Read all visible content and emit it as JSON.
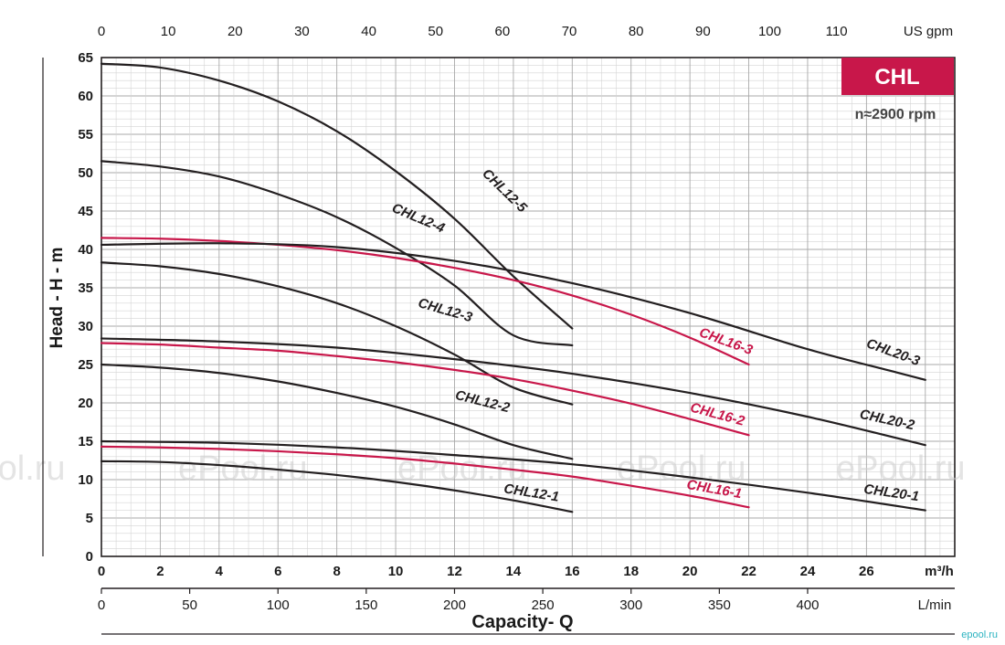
{
  "chart_data": {
    "type": "line",
    "title": "CHL",
    "subtitle": "n≈2900 rpm",
    "ylabel": "Head - H - m",
    "xlabel": "Capacity- Q",
    "ylim": [
      0,
      65
    ],
    "y_ticks": [
      0,
      5,
      10,
      15,
      20,
      25,
      30,
      35,
      40,
      45,
      50,
      55,
      60,
      65
    ],
    "xlim": [
      0,
      29
    ],
    "x_unit": "m³/h",
    "x_ticks": [
      0,
      2,
      4,
      6,
      8,
      10,
      12,
      14,
      16,
      18,
      20,
      22,
      24,
      26
    ],
    "top_axis": {
      "unit": "US gpm",
      "ticks": [
        0,
        10,
        20,
        30,
        40,
        50,
        60,
        70,
        80,
        90,
        100,
        110
      ]
    },
    "bottom_axis": {
      "unit": "L/min",
      "ticks": [
        0,
        50,
        100,
        150,
        200,
        250,
        300,
        350,
        400
      ]
    },
    "grid": true,
    "colors": {
      "black_series": "#231f20",
      "red_series": "#c8174a",
      "badge": "#c8174a"
    },
    "series": [
      {
        "name": "CHL12-5",
        "color": "#231f20",
        "x": [
          0,
          2,
          4,
          6,
          8,
          10,
          12,
          14,
          16
        ],
        "y": [
          64.2,
          63.7,
          62.0,
          59.3,
          55.4,
          50.2,
          44.0,
          36.5,
          29.7
        ]
      },
      {
        "name": "CHL12-4",
        "color": "#231f20",
        "x": [
          0,
          2,
          4,
          6,
          8,
          10,
          12,
          14,
          16
        ],
        "y": [
          51.5,
          50.8,
          49.5,
          47.2,
          44.2,
          40.2,
          35.3,
          28.8,
          27.5
        ]
      },
      {
        "name": "CHL12-3",
        "color": "#231f20",
        "x": [
          0,
          2,
          4,
          6,
          8,
          10,
          12,
          14,
          16
        ],
        "y": [
          38.3,
          37.8,
          36.8,
          35.2,
          33.0,
          30.0,
          26.3,
          22.0,
          19.8
        ]
      },
      {
        "name": "CHL12-2",
        "color": "#231f20",
        "x": [
          0,
          2,
          4,
          6,
          8,
          10,
          12,
          14,
          16
        ],
        "y": [
          25.0,
          24.6,
          23.9,
          22.8,
          21.3,
          19.5,
          17.2,
          14.5,
          12.7
        ]
      },
      {
        "name": "CHL12-1",
        "color": "#231f20",
        "x": [
          0,
          2,
          4,
          6,
          8,
          10,
          12,
          14,
          16
        ],
        "y": [
          12.4,
          12.3,
          11.9,
          11.3,
          10.6,
          9.7,
          8.6,
          7.3,
          5.8
        ]
      },
      {
        "name": "CHL16-3",
        "color": "#c8174a",
        "x": [
          0,
          2,
          4,
          6,
          8,
          10,
          12,
          14,
          16,
          18,
          20,
          22
        ],
        "y": [
          41.5,
          41.4,
          41.1,
          40.6,
          39.9,
          38.9,
          37.6,
          36.0,
          34.0,
          31.5,
          28.5,
          25.0
        ]
      },
      {
        "name": "CHL16-2",
        "color": "#c8174a",
        "x": [
          0,
          2,
          4,
          6,
          8,
          10,
          12,
          14,
          16,
          18,
          20,
          22
        ],
        "y": [
          27.8,
          27.6,
          27.2,
          26.8,
          26.1,
          25.3,
          24.3,
          23.1,
          21.6,
          19.9,
          17.9,
          15.8
        ]
      },
      {
        "name": "CHL16-1",
        "color": "#c8174a",
        "x": [
          0,
          2,
          4,
          6,
          8,
          10,
          12,
          14,
          16,
          18,
          20,
          22
        ],
        "y": [
          14.3,
          14.2,
          14.0,
          13.7,
          13.3,
          12.8,
          12.1,
          11.3,
          10.4,
          9.2,
          7.9,
          6.4
        ]
      },
      {
        "name": "CHL20-3",
        "color": "#231f20",
        "x": [
          0,
          4,
          8,
          12,
          16,
          20,
          24,
          27,
          28
        ],
        "y": [
          40.6,
          40.8,
          40.3,
          38.5,
          35.6,
          31.7,
          27.0,
          24.0,
          23.0
        ]
      },
      {
        "name": "CHL20-2",
        "color": "#231f20",
        "x": [
          0,
          4,
          8,
          12,
          16,
          20,
          24,
          28
        ],
        "y": [
          28.4,
          28.0,
          27.2,
          25.7,
          23.8,
          21.3,
          18.2,
          14.5
        ]
      },
      {
        "name": "CHL20-1",
        "color": "#231f20",
        "x": [
          0,
          4,
          8,
          12,
          16,
          20,
          24,
          28
        ],
        "y": [
          15.0,
          14.8,
          14.2,
          13.2,
          12.0,
          10.3,
          8.3,
          6.0
        ]
      }
    ],
    "watermark": "ePool.ru",
    "watermark_small": "epool.ru"
  }
}
